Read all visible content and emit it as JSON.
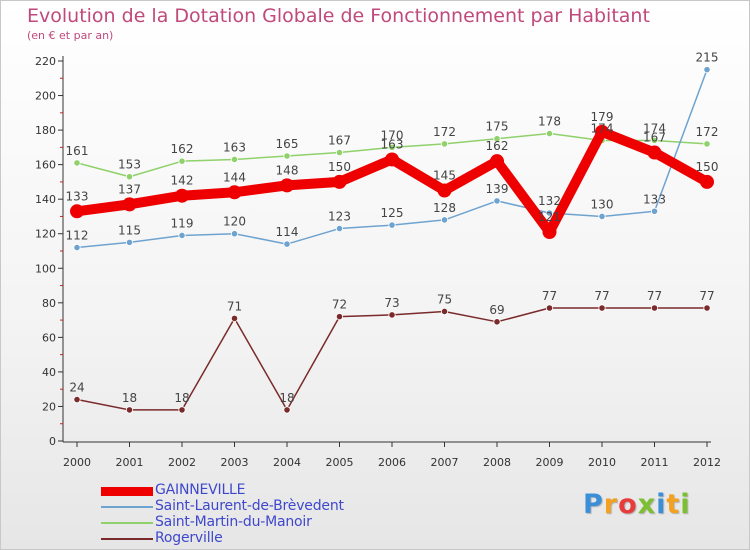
{
  "title": "Evolution de la Dotation Globale de Fonctionnement par Habitant",
  "subtitle": "(en € et par an)",
  "brand": {
    "text": "Proxiti",
    "letters": [
      "P",
      "r",
      "o",
      "x",
      "i",
      "t",
      "i"
    ],
    "colors": [
      "#3a8fd8",
      "#f4a020",
      "#e83c3c",
      "#7cc030",
      "#3a8fd8",
      "#f4a020",
      "#7cc030"
    ]
  },
  "chart_data": {
    "type": "line",
    "title": "Evolution de la Dotation Globale de Fonctionnement par Habitant",
    "subtitle": "(en € et par an)",
    "xlabel": "",
    "ylabel": "",
    "x": [
      "2000",
      "2001",
      "2002",
      "2003",
      "2004",
      "2005",
      "2006",
      "2007",
      "2008",
      "2009",
      "2010",
      "2011",
      "2012"
    ],
    "ylim": [
      0,
      220
    ],
    "yticks": [
      0,
      20,
      40,
      60,
      80,
      100,
      120,
      140,
      160,
      180,
      200,
      220
    ],
    "grid": false,
    "legend_position": "bottom-left",
    "series": [
      {
        "name": "GAINNEVILLE",
        "color": "#ee0000",
        "thick": true,
        "values": [
          133,
          137,
          142,
          144,
          148,
          150,
          163,
          145,
          162,
          121,
          179,
          167,
          150
        ],
        "labels": [
          "133",
          "137",
          "142",
          "144",
          "148",
          "150",
          "163",
          "145",
          "162",
          "121",
          "179",
          "167",
          "150"
        ]
      },
      {
        "name": "Saint-Laurent-de-Brèvedent",
        "color": "#6fa3cf",
        "thick": false,
        "values": [
          112,
          115,
          119,
          120,
          114,
          123,
          125,
          128,
          139,
          132,
          130,
          133,
          215
        ],
        "labels": [
          "112",
          "115",
          "119",
          "120",
          "114",
          "123",
          "125",
          "128",
          "139",
          "132",
          "130",
          "133",
          "215"
        ]
      },
      {
        "name": "Saint-Martin-du-Manoir",
        "color": "#8fd16a",
        "thick": false,
        "values": [
          161,
          153,
          162,
          163,
          165,
          167,
          170,
          172,
          175,
          178,
          174,
          174,
          172
        ],
        "labels": [
          "161",
          "153",
          "162",
          "163",
          "165",
          "167",
          "170",
          "172",
          "175",
          "178",
          "174",
          "174",
          "172"
        ]
      },
      {
        "name": "Rogerville",
        "color": "#7a2a2a",
        "thick": false,
        "values": [
          24,
          18,
          18,
          71,
          18,
          72,
          73,
          75,
          69,
          77,
          77,
          77,
          77
        ],
        "labels": [
          "24",
          "18",
          "18",
          "71",
          "18",
          "72",
          "73",
          "75",
          "69",
          "77",
          "77",
          "77",
          "77"
        ]
      }
    ]
  }
}
